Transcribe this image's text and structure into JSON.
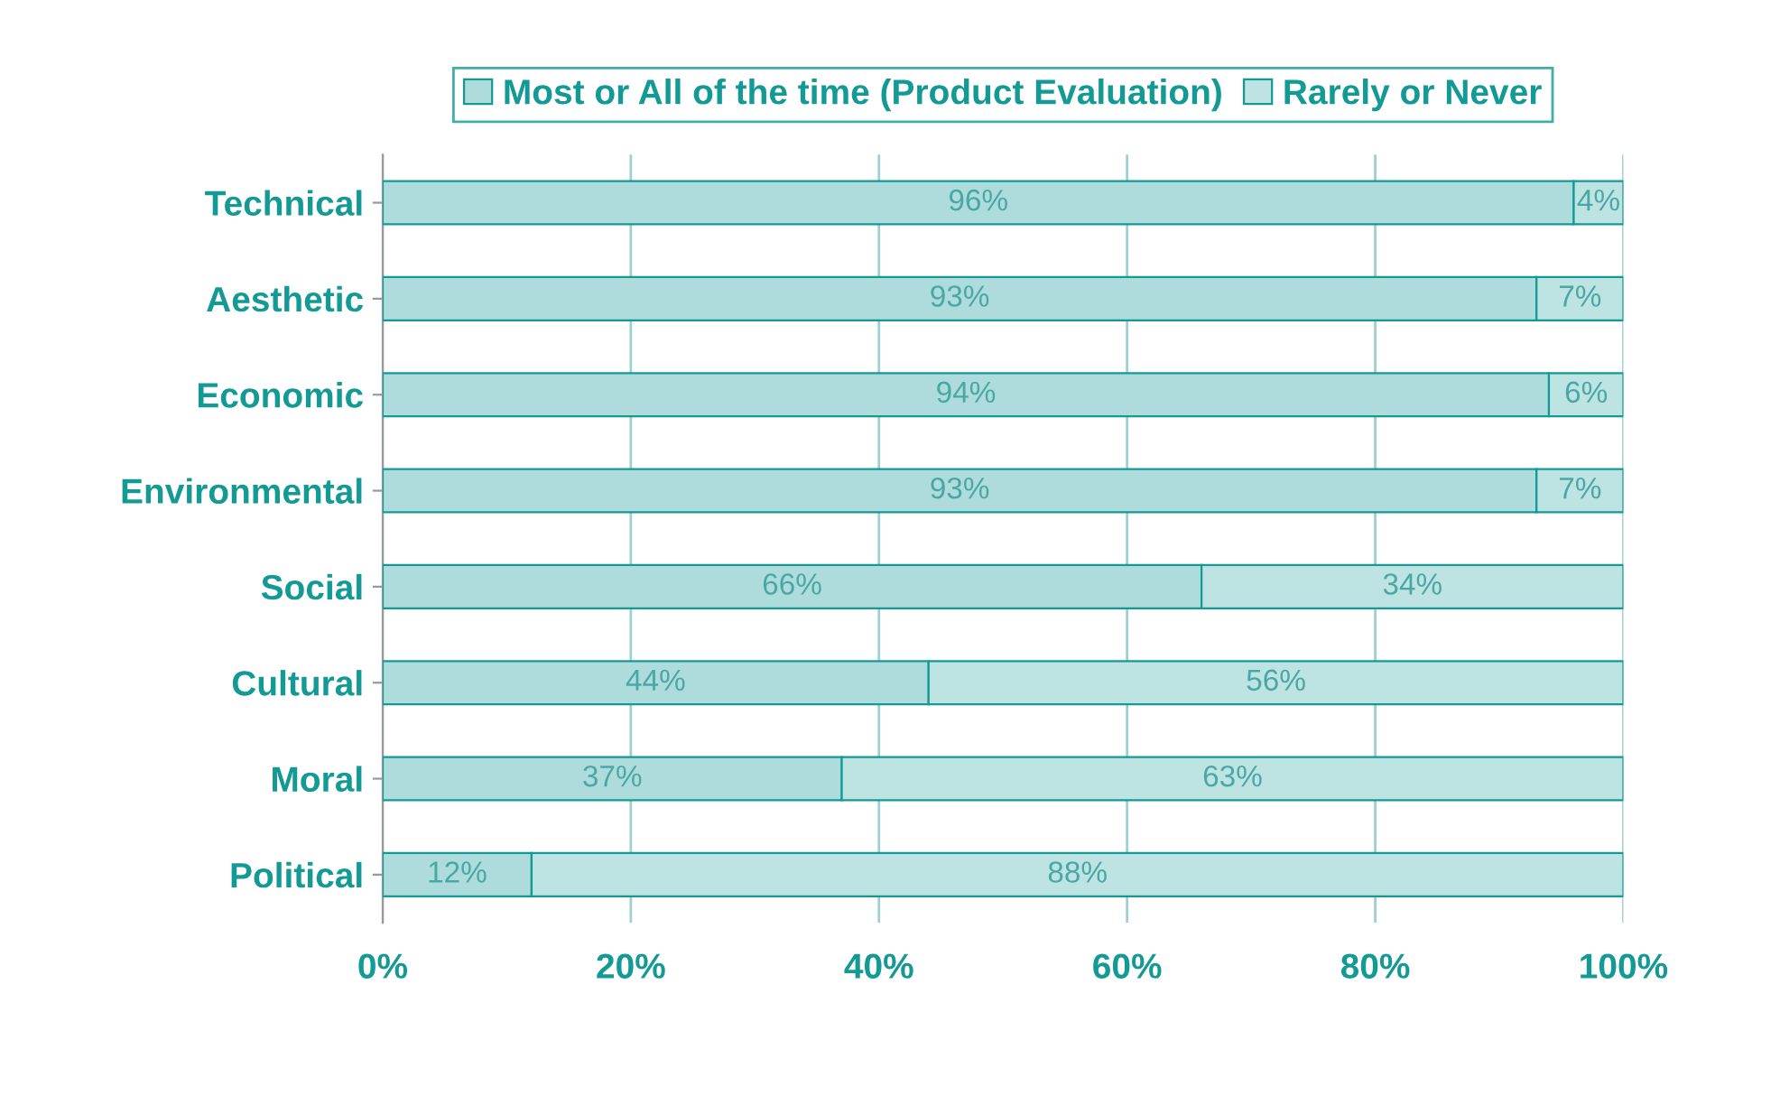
{
  "chart_data": {
    "type": "bar",
    "orientation": "horizontal",
    "stacked": true,
    "categories": [
      "Technical",
      "Aesthetic",
      "Economic",
      "Environmental",
      "Social",
      "Cultural",
      "Moral",
      "Political"
    ],
    "series": [
      {
        "name": "Most or All of the time (Product Evaluation)",
        "color": "#aedcdc",
        "values": [
          96,
          93,
          94,
          93,
          66,
          44,
          37,
          12
        ],
        "value_labels": [
          "96%",
          "93%",
          "94%",
          "93%",
          "66%",
          "44%",
          "37%",
          "12%"
        ]
      },
      {
        "name": "Rarely or Never",
        "color": "#bde3e3",
        "values": [
          4,
          7,
          6,
          7,
          34,
          56,
          63,
          88
        ],
        "value_labels": [
          "4%",
          "7%",
          "6%",
          "7%",
          "34%",
          "56%",
          "63%",
          "88%"
        ]
      }
    ],
    "xlim": [
      0,
      100
    ],
    "xticks": [
      {
        "value": 0,
        "label": "0%"
      },
      {
        "value": 20,
        "label": "20%"
      },
      {
        "value": 40,
        "label": "40%"
      },
      {
        "value": 60,
        "label": "60%"
      },
      {
        "value": 80,
        "label": "80%"
      },
      {
        "value": 100,
        "label": "100%"
      }
    ],
    "grid": "x",
    "legend": "top"
  }
}
